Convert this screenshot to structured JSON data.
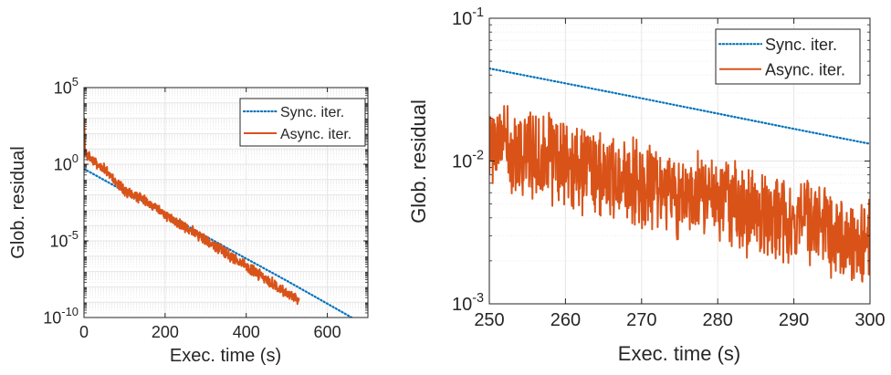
{
  "chart_data": [
    {
      "type": "line",
      "xlabel": "Exec. time (s)",
      "ylabel": "Glob. residual",
      "xlim": [
        0,
        700
      ],
      "ylim": [
        1e-10,
        100000
      ],
      "yscale": "log",
      "grid": true,
      "legend_position": "top-right",
      "x_ticks": [
        {
          "value": 0,
          "label": "0"
        },
        {
          "value": 200,
          "label": "200"
        },
        {
          "value": 400,
          "label": "400"
        },
        {
          "value": 600,
          "label": "600"
        }
      ],
      "y_ticks": [
        {
          "value": 1e-10,
          "base": "10",
          "exp": "-10"
        },
        {
          "value": 1e-05,
          "base": "10",
          "exp": "-5"
        },
        {
          "value": 1,
          "base": "10",
          "exp": "0"
        },
        {
          "value": 100000,
          "base": "10",
          "exp": "5"
        }
      ],
      "series": [
        {
          "name": "Sync. iter.",
          "color": "#0072BD",
          "style": "dotted",
          "x": [
            0,
            100,
            200,
            300,
            400,
            500,
            600,
            700
          ],
          "y": [
            0.5,
            0.017,
            0.0006,
            2e-05,
            7e-07,
            2.5e-08,
            8e-10,
            2.5e-11
          ]
        },
        {
          "name": "Async. iter.",
          "color": "#D95319",
          "style": "solid",
          "x": [
            0,
            1,
            2,
            5,
            50,
            100,
            150,
            200,
            250,
            300,
            350,
            400,
            450,
            500,
            530
          ],
          "y": [
            2000,
            1000,
            10,
            4,
            0.5,
            0.02,
            0.004,
            0.0005,
            8e-05,
            1.2e-05,
            1.6e-06,
            2.2e-07,
            3e-08,
            4e-09,
            1.5e-09
          ],
          "noise_band": 0.4
        }
      ]
    },
    {
      "type": "line",
      "xlabel": "Exec. time (s)",
      "ylabel": "Glob. residual",
      "xlim": [
        250,
        300
      ],
      "ylim": [
        0.001,
        0.1
      ],
      "yscale": "log",
      "grid": true,
      "legend_position": "top-right",
      "x_ticks": [
        {
          "value": 250,
          "label": "250"
        },
        {
          "value": 260,
          "label": "260"
        },
        {
          "value": 270,
          "label": "270"
        },
        {
          "value": 280,
          "label": "280"
        },
        {
          "value": 290,
          "label": "290"
        },
        {
          "value": 300,
          "label": "300"
        }
      ],
      "y_ticks": [
        {
          "value": 0.001,
          "base": "10",
          "exp": "-3"
        },
        {
          "value": 0.01,
          "base": "10",
          "exp": "-2"
        },
        {
          "value": 0.1,
          "base": "10",
          "exp": "-1"
        }
      ],
      "series": [
        {
          "name": "Sync. iter.",
          "color": "#0072BD",
          "style": "dotted",
          "x": [
            250,
            260,
            270,
            280,
            290,
            300
          ],
          "y": [
            0.0445,
            0.035,
            0.0275,
            0.0215,
            0.0168,
            0.0132
          ]
        },
        {
          "name": "Async. iter.",
          "color": "#D95319",
          "style": "solid",
          "x": [
            250,
            255,
            260,
            265,
            270,
            275,
            280,
            285,
            290,
            295,
            300
          ],
          "y": [
            0.013,
            0.011,
            0.0095,
            0.0082,
            0.0068,
            0.006,
            0.0052,
            0.0044,
            0.0037,
            0.0031,
            0.0027
          ],
          "noise_band": 0.35
        }
      ]
    }
  ]
}
